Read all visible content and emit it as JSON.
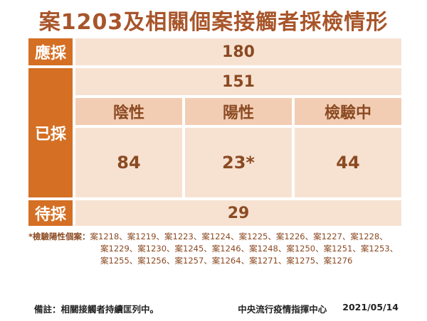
{
  "title": "案1203及相關個案接觸者採檢情形",
  "rows": {
    "sampled_all": {
      "label": "應採",
      "value": "180"
    },
    "already": {
      "label": "已採",
      "total": "151",
      "negative": {
        "label": "陰性",
        "value": "84"
      },
      "positive": {
        "label": "陽性",
        "value": "23*"
      },
      "testing": {
        "label": "檢驗中",
        "value": "44"
      }
    },
    "pending": {
      "label": "待採",
      "value": "29"
    }
  },
  "note": {
    "lead": "*檢驗陽性個案：",
    "line1": "案1218、案1219、案1223、案1224、案1225、案1226、案1227、案1228、",
    "line2": "案1229、案1230、案1245、案1246、案1248、案1250、案1251、案1253、",
    "line3": "案1255、案1256、案1257、案1264、案1271、案1275、案1276"
  },
  "footer": {
    "remark": "備註：相關接觸者持續匡列中。",
    "org": "中央流行疫情指揮中心",
    "date": "2021/05/14"
  }
}
